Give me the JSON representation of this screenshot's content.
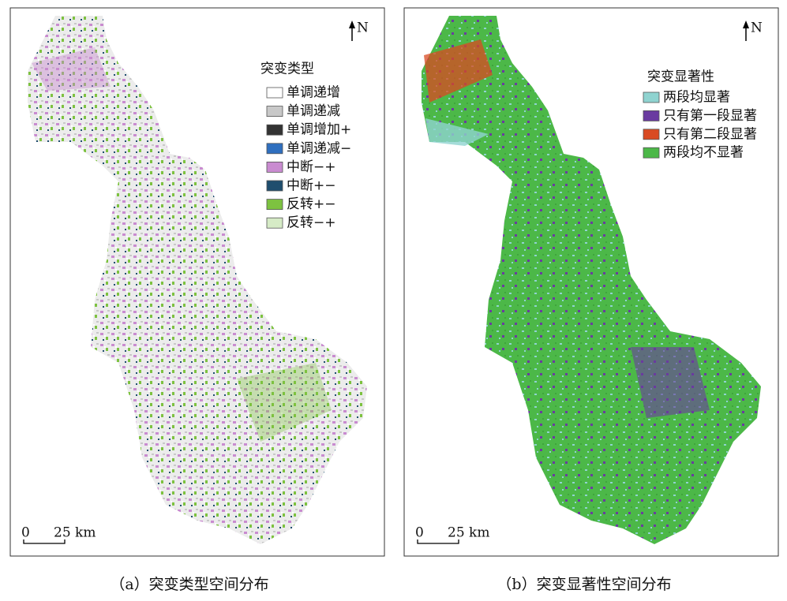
{
  "panels": [
    {
      "legend": {
        "title": "突变类型",
        "items": [
          {
            "label": "单调递增",
            "color": "#ffffff"
          },
          {
            "label": "单调递减",
            "color": "#c8c8c8"
          },
          {
            "label": "单调增加+",
            "color": "#333333"
          },
          {
            "label": "单调递减−",
            "color": "#2f6fbf"
          },
          {
            "label": "中断−+",
            "color": "#c98bd0"
          },
          {
            "label": "中断+−",
            "color": "#1f4e6e"
          },
          {
            "label": "反转+−",
            "color": "#7dc240"
          },
          {
            "label": "反转−+",
            "color": "#d6ebc6"
          }
        ]
      },
      "north": "N",
      "scale": {
        "start": "0",
        "end": "25 km"
      },
      "caption": "（a）突变类型空间分布"
    },
    {
      "legend": {
        "title": "突变显著性",
        "items": [
          {
            "label": "两段均显著",
            "color": "#8fd3d0"
          },
          {
            "label": "只有第一段显著",
            "color": "#6a3ba0"
          },
          {
            "label": "只有第二段显著",
            "color": "#d94a22"
          },
          {
            "label": "两段均不显著",
            "color": "#4cb848"
          }
        ]
      },
      "north": "N",
      "scale": {
        "start": "0",
        "end": "25 km"
      },
      "caption": "（b）突变显著性空间分布"
    }
  ]
}
